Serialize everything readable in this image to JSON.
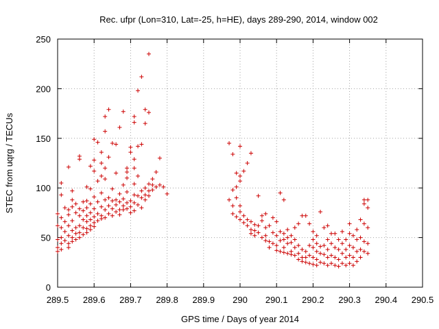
{
  "chart_data": {
    "type": "scatter",
    "title": "Rec. ufpr (Lon=310, Lat=-25, h=HE), days 289-290, 2014, window 002",
    "xlabel": "GPS time / Days of year 2014",
    "ylabel": "STEC from uqrg / TECUs",
    "xlim": [
      289.5,
      290.5
    ],
    "ylim": [
      0,
      250
    ],
    "x_ticks": [
      "289.5",
      "289.6",
      "289.7",
      "289.8",
      "289.9",
      "290",
      "290.1",
      "290.2",
      "290.3",
      "290.4",
      "290.5"
    ],
    "y_ticks": [
      "0",
      "50",
      "100",
      "150",
      "200",
      "250"
    ],
    "grid": true,
    "marker": "+",
    "color": "#cc0000",
    "series": [
      {
        "name": "STEC",
        "points": [
          [
            289.5,
            74
          ],
          [
            289.5,
            62
          ],
          [
            289.5,
            48
          ],
          [
            289.5,
            40
          ],
          [
            289.5,
            36
          ],
          [
            289.51,
            105
          ],
          [
            289.51,
            93
          ],
          [
            289.51,
            70
          ],
          [
            289.51,
            60
          ],
          [
            289.51,
            50
          ],
          [
            289.51,
            44
          ],
          [
            289.51,
            38
          ],
          [
            289.52,
            80
          ],
          [
            289.52,
            66
          ],
          [
            289.52,
            56
          ],
          [
            289.52,
            47
          ],
          [
            289.53,
            121
          ],
          [
            289.53,
            78
          ],
          [
            289.53,
            73
          ],
          [
            289.53,
            62
          ],
          [
            289.53,
            52
          ],
          [
            289.53,
            44
          ],
          [
            289.53,
            40
          ],
          [
            289.54,
            97
          ],
          [
            289.54,
            88
          ],
          [
            289.54,
            81
          ],
          [
            289.54,
            67
          ],
          [
            289.54,
            57
          ],
          [
            289.54,
            50
          ],
          [
            289.54,
            46
          ],
          [
            289.55,
            84
          ],
          [
            289.55,
            75
          ],
          [
            289.55,
            60
          ],
          [
            289.55,
            54
          ],
          [
            289.55,
            48
          ],
          [
            289.56,
            132
          ],
          [
            289.56,
            129
          ],
          [
            289.56,
            79
          ],
          [
            289.56,
            72
          ],
          [
            289.56,
            62
          ],
          [
            289.56,
            55
          ],
          [
            289.56,
            50
          ],
          [
            289.57,
            86
          ],
          [
            289.57,
            77
          ],
          [
            289.57,
            68
          ],
          [
            289.57,
            60
          ],
          [
            289.57,
            53
          ],
          [
            289.58,
            101
          ],
          [
            289.58,
            87
          ],
          [
            289.58,
            80
          ],
          [
            289.58,
            72
          ],
          [
            289.58,
            66
          ],
          [
            289.58,
            59
          ],
          [
            289.58,
            55
          ],
          [
            289.59,
            122
          ],
          [
            289.59,
            99
          ],
          [
            289.59,
            84
          ],
          [
            289.59,
            75
          ],
          [
            289.59,
            68
          ],
          [
            289.59,
            62
          ],
          [
            289.59,
            58
          ],
          [
            289.6,
            149
          ],
          [
            289.6,
            128
          ],
          [
            289.6,
            117
          ],
          [
            289.6,
            91
          ],
          [
            289.6,
            79
          ],
          [
            289.6,
            71
          ],
          [
            289.6,
            65
          ],
          [
            289.6,
            61
          ],
          [
            289.61,
            146
          ],
          [
            289.61,
            107
          ],
          [
            289.61,
            86
          ],
          [
            289.61,
            74
          ],
          [
            289.61,
            67
          ],
          [
            289.62,
            136
          ],
          [
            289.62,
            125
          ],
          [
            289.62,
            112
          ],
          [
            289.62,
            95
          ],
          [
            289.62,
            81
          ],
          [
            289.62,
            72
          ],
          [
            289.62,
            69
          ],
          [
            289.63,
            172
          ],
          [
            289.63,
            157
          ],
          [
            289.63,
            120
          ],
          [
            289.63,
            109
          ],
          [
            289.63,
            88
          ],
          [
            289.63,
            78
          ],
          [
            289.63,
            70
          ],
          [
            289.64,
            179
          ],
          [
            289.64,
            131
          ],
          [
            289.64,
            90
          ],
          [
            289.64,
            82
          ],
          [
            289.64,
            74
          ],
          [
            289.65,
            145
          ],
          [
            289.65,
            99
          ],
          [
            289.65,
            87
          ],
          [
            289.65,
            79
          ],
          [
            289.65,
            72
          ],
          [
            289.66,
            144
          ],
          [
            289.66,
            115
          ],
          [
            289.66,
            88
          ],
          [
            289.66,
            83
          ],
          [
            289.66,
            76
          ],
          [
            289.67,
            161
          ],
          [
            289.67,
            94
          ],
          [
            289.67,
            86
          ],
          [
            289.67,
            78
          ],
          [
            289.67,
            73
          ],
          [
            289.68,
            177
          ],
          [
            289.68,
            103
          ],
          [
            289.68,
            89
          ],
          [
            289.68,
            82
          ],
          [
            289.68,
            78
          ],
          [
            289.69,
            120
          ],
          [
            289.69,
            116
          ],
          [
            289.69,
            110
          ],
          [
            289.69,
            96
          ],
          [
            289.69,
            85
          ],
          [
            289.69,
            79
          ],
          [
            289.7,
            141
          ],
          [
            289.7,
            136
          ],
          [
            289.7,
            87
          ],
          [
            289.7,
            81
          ],
          [
            289.7,
            75
          ],
          [
            289.71,
            172
          ],
          [
            289.71,
            166
          ],
          [
            289.71,
            129
          ],
          [
            289.71,
            120
          ],
          [
            289.71,
            104
          ],
          [
            289.71,
            93
          ],
          [
            289.71,
            85
          ],
          [
            289.71,
            77
          ],
          [
            289.72,
            198
          ],
          [
            289.72,
            142
          ],
          [
            289.72,
            112
          ],
          [
            289.72,
            92
          ],
          [
            289.72,
            83
          ],
          [
            289.73,
            212
          ],
          [
            289.73,
            144
          ],
          [
            289.73,
            97
          ],
          [
            289.73,
            90
          ],
          [
            289.73,
            80
          ],
          [
            289.74,
            179
          ],
          [
            289.74,
            165
          ],
          [
            289.74,
            100
          ],
          [
            289.74,
            93
          ],
          [
            289.74,
            88
          ],
          [
            289.75,
            235
          ],
          [
            289.75,
            176
          ],
          [
            289.75,
            104
          ],
          [
            289.75,
            97
          ],
          [
            289.75,
            92
          ],
          [
            289.76,
            109
          ],
          [
            289.76,
            103
          ],
          [
            289.76,
            98
          ],
          [
            289.77,
            116
          ],
          [
            289.77,
            101
          ],
          [
            289.78,
            130
          ],
          [
            289.78,
            103
          ],
          [
            289.79,
            101
          ],
          [
            289.8,
            94
          ],
          [
            289.97,
            145
          ],
          [
            289.97,
            88
          ],
          [
            289.98,
            134
          ],
          [
            289.98,
            98
          ],
          [
            289.98,
            82
          ],
          [
            289.98,
            74
          ],
          [
            289.99,
            115
          ],
          [
            289.99,
            101
          ],
          [
            289.99,
            90
          ],
          [
            289.99,
            71
          ],
          [
            290.0,
            142
          ],
          [
            290.0,
            112
          ],
          [
            290.0,
            107
          ],
          [
            290.0,
            82
          ],
          [
            290.0,
            76
          ],
          [
            290.0,
            68
          ],
          [
            290.01,
            117
          ],
          [
            290.01,
            72
          ],
          [
            290.01,
            65
          ],
          [
            290.02,
            125
          ],
          [
            290.02,
            68
          ],
          [
            290.02,
            62
          ],
          [
            290.03,
            135
          ],
          [
            290.03,
            66
          ],
          [
            290.03,
            58
          ],
          [
            290.03,
            54
          ],
          [
            290.04,
            63
          ],
          [
            290.04,
            57
          ],
          [
            290.04,
            52
          ],
          [
            290.05,
            92
          ],
          [
            290.05,
            62
          ],
          [
            290.05,
            55
          ],
          [
            290.06,
            72
          ],
          [
            290.06,
            67
          ],
          [
            290.06,
            50
          ],
          [
            290.07,
            74
          ],
          [
            290.07,
            60
          ],
          [
            290.07,
            52
          ],
          [
            290.07,
            47
          ],
          [
            290.08,
            62
          ],
          [
            290.08,
            46
          ],
          [
            290.08,
            40
          ],
          [
            290.09,
            70
          ],
          [
            290.09,
            55
          ],
          [
            290.09,
            44
          ],
          [
            290.1,
            66
          ],
          [
            290.1,
            52
          ],
          [
            290.1,
            42
          ],
          [
            290.1,
            37
          ],
          [
            290.11,
            95
          ],
          [
            290.11,
            56
          ],
          [
            290.11,
            47
          ],
          [
            290.11,
            36
          ],
          [
            290.12,
            88
          ],
          [
            290.12,
            54
          ],
          [
            290.12,
            48
          ],
          [
            290.12,
            40
          ],
          [
            290.12,
            35
          ],
          [
            290.13,
            58
          ],
          [
            290.13,
            50
          ],
          [
            290.13,
            44
          ],
          [
            290.13,
            34
          ],
          [
            290.14,
            52
          ],
          [
            290.14,
            45
          ],
          [
            290.14,
            36
          ],
          [
            290.14,
            33
          ],
          [
            290.15,
            60
          ],
          [
            290.15,
            48
          ],
          [
            290.15,
            40
          ],
          [
            290.15,
            32
          ],
          [
            290.16,
            64
          ],
          [
            290.16,
            42
          ],
          [
            290.16,
            34
          ],
          [
            290.16,
            28
          ],
          [
            290.17,
            72
          ],
          [
            290.17,
            38
          ],
          [
            290.17,
            30
          ],
          [
            290.17,
            26
          ],
          [
            290.18,
            72
          ],
          [
            290.18,
            36
          ],
          [
            290.18,
            30
          ],
          [
            290.18,
            25
          ],
          [
            290.19,
            64
          ],
          [
            290.19,
            42
          ],
          [
            290.19,
            32
          ],
          [
            290.19,
            24
          ],
          [
            290.2,
            56
          ],
          [
            290.2,
            48
          ],
          [
            290.2,
            40
          ],
          [
            290.2,
            30
          ],
          [
            290.2,
            23
          ],
          [
            290.21,
            52
          ],
          [
            290.21,
            44
          ],
          [
            290.21,
            36
          ],
          [
            290.21,
            28
          ],
          [
            290.21,
            22
          ],
          [
            290.22,
            76
          ],
          [
            290.22,
            41
          ],
          [
            290.22,
            34
          ],
          [
            290.22,
            25
          ],
          [
            290.23,
            60
          ],
          [
            290.23,
            42
          ],
          [
            290.23,
            33
          ],
          [
            290.23,
            24
          ],
          [
            290.24,
            62
          ],
          [
            290.24,
            48
          ],
          [
            290.24,
            38
          ],
          [
            290.24,
            30
          ],
          [
            290.24,
            22
          ],
          [
            290.25,
            54
          ],
          [
            290.25,
            44
          ],
          [
            290.25,
            32
          ],
          [
            290.25,
            24
          ],
          [
            290.26,
            54
          ],
          [
            290.26,
            40
          ],
          [
            290.26,
            30
          ],
          [
            290.26,
            22
          ],
          [
            290.27,
            48
          ],
          [
            290.27,
            38
          ],
          [
            290.27,
            28
          ],
          [
            290.27,
            21
          ],
          [
            290.28,
            56
          ],
          [
            290.28,
            44
          ],
          [
            290.28,
            34
          ],
          [
            290.28,
            24
          ],
          [
            290.29,
            48
          ],
          [
            290.29,
            38
          ],
          [
            290.29,
            30
          ],
          [
            290.29,
            22
          ],
          [
            290.3,
            64
          ],
          [
            290.3,
            54
          ],
          [
            290.3,
            42
          ],
          [
            290.3,
            32
          ],
          [
            290.3,
            24
          ],
          [
            290.31,
            52
          ],
          [
            290.31,
            40
          ],
          [
            290.31,
            30
          ],
          [
            290.31,
            22
          ],
          [
            290.32,
            58
          ],
          [
            290.32,
            48
          ],
          [
            290.32,
            36
          ],
          [
            290.32,
            26
          ],
          [
            290.33,
            68
          ],
          [
            290.33,
            50
          ],
          [
            290.33,
            38
          ],
          [
            290.33,
            30
          ],
          [
            290.34,
            88
          ],
          [
            290.34,
            84
          ],
          [
            290.34,
            64
          ],
          [
            290.34,
            46
          ],
          [
            290.34,
            36
          ],
          [
            290.35,
            88
          ],
          [
            290.35,
            80
          ],
          [
            290.35,
            60
          ],
          [
            290.35,
            44
          ],
          [
            290.35,
            34
          ]
        ]
      }
    ]
  }
}
